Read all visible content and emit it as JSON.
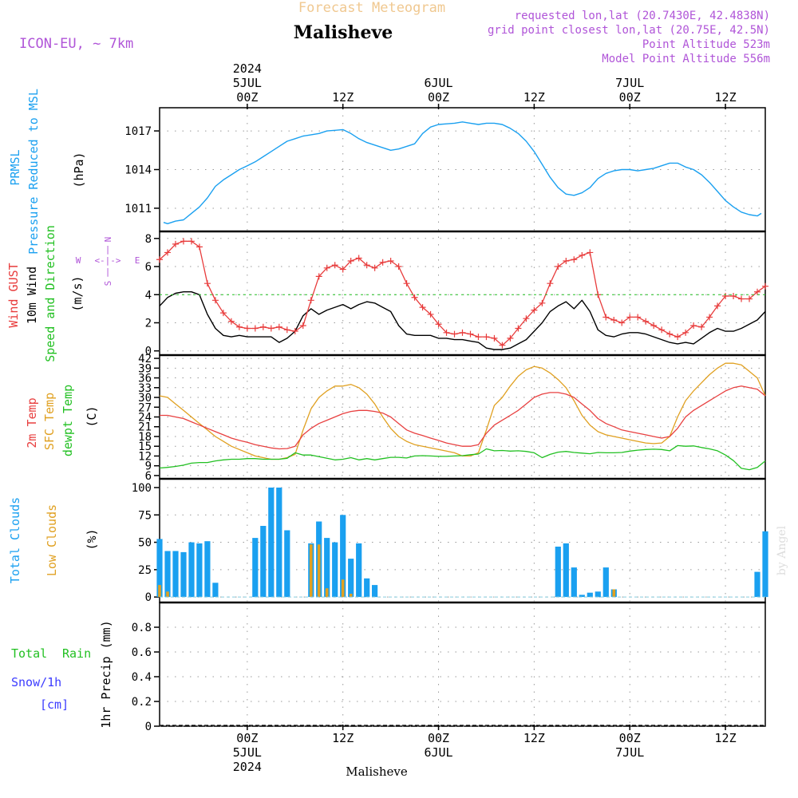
{
  "header": {
    "supertitle": "Forecast Meteogram",
    "title": "Malisheve",
    "model": "ICON-EU, ~ 7km",
    "requested": "requested lon,lat (20.7430E, 42.4838N)",
    "gridpoint": "grid point closest lon,lat (20.75E, 42.5N)",
    "point_alt": "Point Altitude 523m",
    "model_alt": "Model Point Altitude 556m",
    "footer_title": "Malisheve",
    "credit": "by Angel"
  },
  "time_axis": {
    "top_labels": [
      {
        "hour": 0,
        "lines": [
          "2024",
          "5JUL",
          "00Z"
        ]
      },
      {
        "hour": 12,
        "lines": [
          "12Z"
        ]
      },
      {
        "hour": 24,
        "lines": [
          "6JUL",
          "00Z"
        ]
      },
      {
        "hour": 36,
        "lines": [
          "12Z"
        ]
      },
      {
        "hour": 48,
        "lines": [
          "7JUL",
          "00Z"
        ]
      },
      {
        "hour": 60,
        "lines": [
          "12Z"
        ]
      }
    ],
    "bottom_labels": [
      {
        "hour": 0,
        "lines": [
          "00Z",
          "5JUL",
          "2024"
        ]
      },
      {
        "hour": 12,
        "lines": [
          "12Z"
        ]
      },
      {
        "hour": 24,
        "lines": [
          "00Z",
          "6JUL"
        ]
      },
      {
        "hour": 36,
        "lines": [
          "12Z"
        ]
      },
      {
        "hour": 48,
        "lines": [
          "00Z",
          "7JUL"
        ]
      },
      {
        "hour": 60,
        "lines": [
          "12Z"
        ]
      }
    ],
    "hour_start": -11,
    "hour_end": 65
  },
  "colors": {
    "pressure": "#1aa0f0",
    "gust": "#e83c3c",
    "wind": "#000000",
    "wind_dir": "#22c022",
    "temp2m": "#e84040",
    "sfc": "#e0a020",
    "dewpt": "#22c022",
    "total_clouds": "#1aa0f0",
    "low_clouds": "#e0a020",
    "rain": "#22c022",
    "snow": "#3c3cff",
    "purple": "#b055d8",
    "credit": "#dddddd"
  },
  "panels": {
    "pressure": {
      "labels": [
        "PRMSL",
        "Pressure Reduced to MSL"
      ],
      "unit": "(hPa)",
      "ticks": [
        "1011",
        "1014",
        "1017"
      ]
    },
    "wind": {
      "labels": [
        "Wind GUST",
        "10m Wind",
        "Speed and Direction"
      ],
      "unit": "(m/s)",
      "ticks": [
        "0",
        "2",
        "4",
        "6",
        "8"
      ],
      "compass": {
        "n": "N",
        "s": "S",
        "w": "W",
        "e": "E",
        "arrow_h": "<-|->",
        "arrow_n": "|",
        "arrow_s": "|"
      }
    },
    "temperature": {
      "labels": [
        "2m Temp",
        "SFC Temp",
        "dewpt Temp"
      ],
      "unit": "(C)",
      "ticks": [
        "6",
        "9",
        "12",
        "15",
        "18",
        "21",
        "24",
        "27",
        "30",
        "33",
        "36",
        "39",
        "42"
      ]
    },
    "clouds": {
      "labels": [
        "Total Clouds",
        "Low Clouds"
      ],
      "unit": "(%)",
      "ticks": [
        "0",
        "25",
        "50",
        "75",
        "100"
      ]
    },
    "precip": {
      "labels": [
        "Total",
        "Rain",
        "Snow/1h",
        "[cm]"
      ],
      "unit": "1hr Precip (mm)",
      "ticks": [
        "0",
        "0.2",
        "0.4",
        "0.6",
        "0.8"
      ]
    }
  },
  "chart_data": [
    {
      "type": "line",
      "title": "PRMSL Pressure Reduced to MSL",
      "ylabel": "(hPa)",
      "ylim": [
        1009.2,
        1018.8
      ],
      "x": [
        -10.5,
        -10,
        -9,
        -8,
        -7,
        -6,
        -5,
        -4,
        -3,
        -2,
        -1,
        0,
        1,
        2,
        3,
        4,
        5,
        6,
        7,
        8,
        9,
        10,
        11,
        12,
        13,
        14,
        15,
        16,
        17,
        18,
        19,
        20,
        21,
        22,
        23,
        24,
        25,
        26,
        27,
        28,
        29,
        30,
        31,
        32,
        33,
        34,
        35,
        36,
        37,
        38,
        39,
        40,
        41,
        42,
        43,
        44,
        45,
        46,
        47,
        48,
        49,
        50,
        51,
        52,
        53,
        54,
        55,
        56,
        57,
        58,
        59,
        60,
        61,
        62,
        63,
        64,
        64.5
      ],
      "series": [
        {
          "name": "PRMSL",
          "values": [
            1009.9,
            1009.8,
            1010.0,
            1010.1,
            1010.6,
            1011.1,
            1011.8,
            1012.7,
            1013.2,
            1013.6,
            1014.0,
            1014.3,
            1014.6,
            1015.0,
            1015.4,
            1015.8,
            1016.2,
            1016.4,
            1016.6,
            1016.7,
            1016.8,
            1017.0,
            1017.05,
            1017.1,
            1016.8,
            1016.4,
            1016.1,
            1015.9,
            1015.7,
            1015.5,
            1015.6,
            1015.8,
            1016.0,
            1016.8,
            1017.3,
            1017.5,
            1017.55,
            1017.6,
            1017.7,
            1017.6,
            1017.5,
            1017.6,
            1017.6,
            1017.5,
            1017.2,
            1016.8,
            1016.2,
            1015.4,
            1014.4,
            1013.4,
            1012.6,
            1012.1,
            1012.0,
            1012.2,
            1012.6,
            1013.3,
            1013.7,
            1013.9,
            1014.0,
            1014.0,
            1013.9,
            1014.0,
            1014.1,
            1014.3,
            1014.5,
            1014.5,
            1014.2,
            1014.0,
            1013.6,
            1013.0,
            1012.3,
            1011.6,
            1011.1,
            1010.7,
            1010.5,
            1010.4,
            1010.6
          ]
        }
      ]
    },
    {
      "type": "line",
      "title": "Wind GUST / 10m Wind Speed and Direction",
      "ylabel": "(m/s)",
      "ylim": [
        -0.3,
        8.5
      ],
      "x": [
        -11,
        -10,
        -9,
        -8,
        -7,
        -6,
        -5,
        -4,
        -3,
        -2,
        -1,
        0,
        1,
        2,
        3,
        4,
        5,
        6,
        7,
        8,
        9,
        10,
        11,
        12,
        13,
        14,
        15,
        16,
        17,
        18,
        19,
        20,
        21,
        22,
        23,
        24,
        25,
        26,
        27,
        28,
        29,
        30,
        31,
        32,
        33,
        34,
        35,
        36,
        37,
        38,
        39,
        40,
        41,
        42,
        43,
        44,
        45,
        46,
        47,
        48,
        49,
        50,
        51,
        52,
        53,
        54,
        55,
        56,
        57,
        58,
        59,
        60,
        61,
        62,
        63,
        64,
        65
      ],
      "series": [
        {
          "name": "Wind GUST",
          "values": [
            6.5,
            7.0,
            7.6,
            7.8,
            7.8,
            7.4,
            4.8,
            3.6,
            2.7,
            2.1,
            1.7,
            1.6,
            1.6,
            1.7,
            1.6,
            1.7,
            1.5,
            1.4,
            1.8,
            3.6,
            5.3,
            5.9,
            6.1,
            5.8,
            6.4,
            6.6,
            6.1,
            5.9,
            6.3,
            6.4,
            6.0,
            4.8,
            3.8,
            3.1,
            2.6,
            1.9,
            1.3,
            1.2,
            1.3,
            1.2,
            1.0,
            1.0,
            0.9,
            0.4,
            0.9,
            1.6,
            2.3,
            2.9,
            3.4,
            4.8,
            6.0,
            6.4,
            6.5,
            6.8,
            7.0,
            4.0,
            2.4,
            2.2,
            2.0,
            2.4,
            2.4,
            2.1,
            1.8,
            1.5,
            1.2,
            1.0,
            1.3,
            1.8,
            1.7,
            2.4,
            3.2,
            3.9,
            3.9,
            3.7,
            3.7,
            4.2,
            4.6
          ]
        },
        {
          "name": "10m Wind",
          "values": [
            3.2,
            3.8,
            4.1,
            4.2,
            4.2,
            4.0,
            2.6,
            1.6,
            1.1,
            1.0,
            1.1,
            1.0,
            1.0,
            1.0,
            1.0,
            0.6,
            0.9,
            1.4,
            2.5,
            3.0,
            2.6,
            2.9,
            3.1,
            3.3,
            3.0,
            3.3,
            3.5,
            3.4,
            3.1,
            2.8,
            1.8,
            1.2,
            1.1,
            1.1,
            1.1,
            0.9,
            0.9,
            0.8,
            0.8,
            0.7,
            0.6,
            0.2,
            0.1,
            0.1,
            0.2,
            0.5,
            0.8,
            1.4,
            2.0,
            2.8,
            3.2,
            3.5,
            3.0,
            3.6,
            2.8,
            1.5,
            1.1,
            1.0,
            1.2,
            1.3,
            1.3,
            1.2,
            1.0,
            0.8,
            0.6,
            0.5,
            0.6,
            0.5,
            0.9,
            1.3,
            1.6,
            1.4,
            1.4,
            1.6,
            1.9,
            2.2,
            2.8
          ]
        }
      ]
    },
    {
      "type": "line",
      "title": "2m Temp / SFC Temp / dewpt Temp",
      "ylabel": "(C)",
      "ylim": [
        5,
        43
      ],
      "x": [
        -11,
        -10,
        -9,
        -8,
        -7,
        -6,
        -5,
        -4,
        -3,
        -2,
        -1,
        0,
        1,
        2,
        3,
        4,
        5,
        6,
        7,
        8,
        9,
        10,
        11,
        12,
        13,
        14,
        15,
        16,
        17,
        18,
        19,
        20,
        21,
        22,
        23,
        24,
        25,
        26,
        27,
        28,
        29,
        30,
        31,
        32,
        33,
        34,
        35,
        36,
        37,
        38,
        39,
        40,
        41,
        42,
        43,
        44,
        45,
        46,
        47,
        48,
        49,
        50,
        51,
        52,
        53,
        54,
        55,
        56,
        57,
        58,
        59,
        60,
        61,
        62,
        63,
        64,
        65
      ],
      "series": [
        {
          "name": "2m Temp",
          "values": [
            24.5,
            24.5,
            24.0,
            23.5,
            22.5,
            21.5,
            20.5,
            19.5,
            18.5,
            17.5,
            16.8,
            16.2,
            15.5,
            15.0,
            14.5,
            14.2,
            14.3,
            15.0,
            18.5,
            20.5,
            22.0,
            23.0,
            24.0,
            25.0,
            25.7,
            26.0,
            26.0,
            25.7,
            25.2,
            24.0,
            22.0,
            20.0,
            19.0,
            18.3,
            17.5,
            16.8,
            16.0,
            15.5,
            15.0,
            15.0,
            15.5,
            19.0,
            21.5,
            23.0,
            24.5,
            26.0,
            28.0,
            30.0,
            31.0,
            31.5,
            31.5,
            31.0,
            30.0,
            28.0,
            26.0,
            23.5,
            22.0,
            21.0,
            20.0,
            19.5,
            19.0,
            18.5,
            18.0,
            17.5,
            18.0,
            20.5,
            24.0,
            26.0,
            27.5,
            29.0,
            30.5,
            32.0,
            33.0,
            33.5,
            33.0,
            32.5,
            30.5
          ]
        },
        {
          "name": "SFC Temp",
          "values": [
            30.5,
            30.0,
            28.0,
            26.0,
            24.0,
            22.0,
            20.0,
            18.0,
            16.5,
            15.0,
            14.0,
            13.0,
            12.0,
            11.5,
            11.0,
            11.0,
            11.5,
            12.5,
            20.0,
            26.5,
            30.0,
            32.0,
            33.5,
            33.5,
            34.0,
            33.0,
            31.0,
            28.0,
            24.0,
            20.5,
            18.0,
            16.5,
            15.5,
            15.0,
            14.5,
            14.0,
            13.5,
            13.0,
            12.0,
            12.0,
            13.0,
            20.0,
            27.5,
            30.0,
            33.5,
            36.5,
            38.5,
            39.5,
            39.0,
            37.5,
            35.5,
            33.0,
            29.0,
            24.5,
            21.5,
            19.5,
            18.5,
            18.0,
            17.5,
            17.0,
            16.5,
            16.0,
            15.8,
            16.0,
            18.0,
            24.0,
            29.0,
            32.0,
            34.5,
            37.0,
            39.0,
            40.5,
            40.5,
            40.0,
            38.0,
            36.0,
            30.5
          ]
        },
        {
          "name": "dewpt Temp",
          "values": [
            8.3,
            8.5,
            8.8,
            9.2,
            9.8,
            10.0,
            10.0,
            10.5,
            10.8,
            11.0,
            11.0,
            11.2,
            11.2,
            11.0,
            11.0,
            11.0,
            11.3,
            13.0,
            12.3,
            12.3,
            11.8,
            11.3,
            10.8,
            11.0,
            11.5,
            10.8,
            11.2,
            10.8,
            11.2,
            11.6,
            11.6,
            11.4,
            12.0,
            12.1,
            12.0,
            11.9,
            11.9,
            12.0,
            12.1,
            12.4,
            12.6,
            14.2,
            13.6,
            13.7,
            13.5,
            13.6,
            13.4,
            13.0,
            11.5,
            12.5,
            13.2,
            13.4,
            13.1,
            12.9,
            12.7,
            13.1,
            13.0,
            13.0,
            13.1,
            13.5,
            13.8,
            14.0,
            14.1,
            14.0,
            13.6,
            15.2,
            15.0,
            15.1,
            14.6,
            14.2,
            13.6,
            12.3,
            10.6,
            8.2,
            7.8,
            8.5,
            10.5
          ]
        }
      ]
    },
    {
      "type": "bar",
      "title": "Total Clouds / Low Clouds",
      "ylabel": "(%)",
      "ylim": [
        -5,
        108
      ],
      "x": [
        -11,
        -10,
        -9,
        -8,
        -7,
        -6,
        -5,
        -4,
        -3,
        -2,
        -1,
        0,
        1,
        2,
        3,
        4,
        5,
        6,
        7,
        8,
        9,
        10,
        11,
        12,
        13,
        14,
        15,
        16,
        17,
        18,
        19,
        20,
        21,
        22,
        23,
        24,
        25,
        26,
        27,
        28,
        29,
        30,
        31,
        32,
        33,
        34,
        35,
        36,
        37,
        38,
        39,
        40,
        41,
        42,
        43,
        44,
        45,
        46,
        47,
        48,
        49,
        50,
        51,
        52,
        53,
        54,
        55,
        56,
        57,
        58,
        59,
        60,
        61,
        62,
        63,
        64,
        65
      ],
      "series": [
        {
          "name": "Total Clouds",
          "values": [
            53,
            42,
            42,
            41,
            50,
            49,
            51,
            13,
            0,
            0,
            0,
            0,
            54,
            65,
            100,
            100,
            61,
            0,
            0,
            49,
            69,
            54,
            50,
            75,
            35,
            49,
            17,
            11,
            0,
            0,
            0,
            0,
            0,
            0,
            0,
            0,
            0,
            0,
            0,
            0,
            0,
            0,
            0,
            0,
            0,
            0,
            0,
            0,
            0,
            0,
            46,
            49,
            27,
            2,
            4,
            5,
            27,
            7,
            0,
            0,
            0,
            0,
            0,
            0,
            0,
            0,
            0,
            0,
            0,
            0,
            0,
            0,
            0,
            0,
            0,
            23,
            60
          ]
        },
        {
          "name": "Low Clouds",
          "values": [
            11,
            5,
            0,
            0,
            0,
            0,
            0,
            0,
            0,
            0,
            0,
            0,
            0,
            0,
            0,
            0,
            0,
            0,
            0,
            48,
            48,
            8,
            0,
            16,
            3,
            0,
            0,
            0,
            0,
            0,
            0,
            0,
            0,
            0,
            0,
            0,
            0,
            0,
            0,
            0,
            0,
            0,
            0,
            0,
            0,
            0,
            0,
            0,
            0,
            0,
            0,
            0,
            0,
            0,
            0,
            0,
            0,
            7,
            0,
            0,
            0,
            0,
            0,
            0,
            0,
            0,
            0,
            0,
            0,
            0,
            0,
            0,
            0,
            0,
            0,
            0,
            0
          ]
        }
      ]
    },
    {
      "type": "bar",
      "title": "Total Rain Snow/1h [cm]",
      "ylabel": "1hr Precip (mm)",
      "ylim": [
        0,
        1.0
      ],
      "x": [
        -11,
        65
      ],
      "series": [
        {
          "name": "Total",
          "values": [
            0,
            0
          ]
        },
        {
          "name": "Snow/1h",
          "values": [
            0,
            0
          ]
        }
      ]
    }
  ]
}
